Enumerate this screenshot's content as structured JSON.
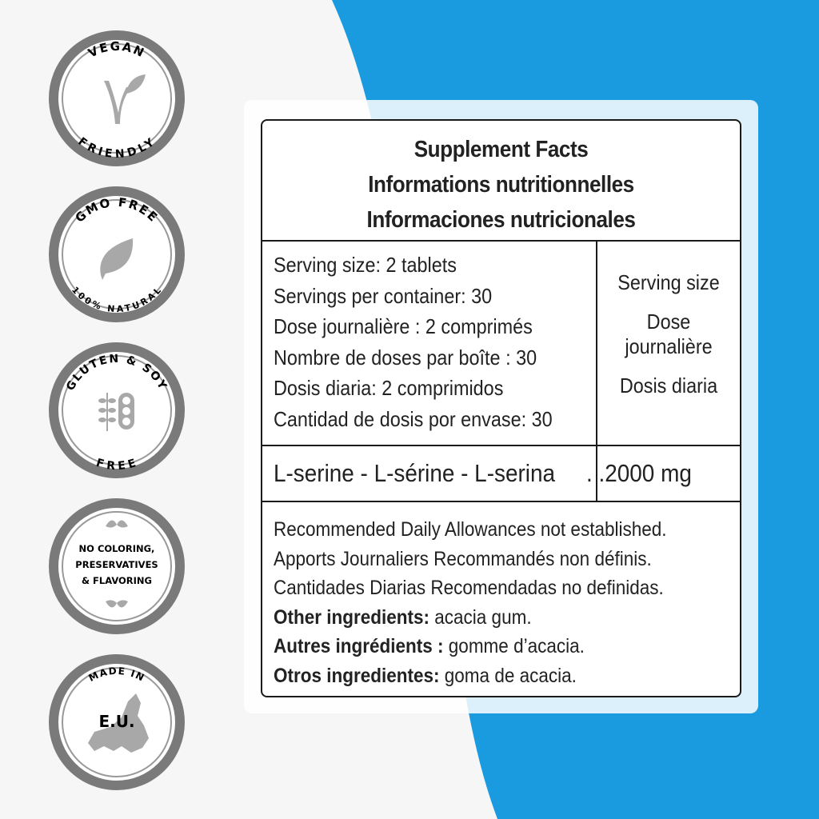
{
  "colors": {
    "background": "#f7f6f7",
    "accent_blue": "#1a9be0",
    "badge_ring": "#7a7a7a",
    "badge_icon": "#a0a0a0"
  },
  "badges": [
    {
      "top": "VEGAN",
      "bottom": "FRIENDLY",
      "icon": "v-leaf-icon"
    },
    {
      "top": "GMO FREE",
      "bottom": "100% NATURAL",
      "icon": "leaf-icon"
    },
    {
      "top": "GLUTEN & SOY",
      "bottom": "FREE",
      "icon": "wheat-soy-icon"
    },
    {
      "lines": [
        "NO COLORING,",
        "PRESERVATIVES",
        "& FLAVORING"
      ],
      "icon": "leaves-icon"
    },
    {
      "top": "MADE IN",
      "center": "E.U.",
      "icon": "europe-map-icon"
    }
  ],
  "facts": {
    "titles": [
      "Supplement Facts",
      "Informations nutritionnelles",
      "Informaciones nutricionales"
    ],
    "serving_lines": [
      "Serving size: 2 tablets",
      "Servings per container: 30",
      "Dose journalière : 2 comprimés",
      "Nombre de doses par boîte : 30",
      "Dosis diaria: 2 comprimidos",
      "Cantidad de dosis por envase: 30"
    ],
    "serving_header": {
      "en": "Serving size",
      "fr_1": "Dose",
      "fr_2": "journalière",
      "es": "Dosis diaria"
    },
    "ingredient": {
      "name": "L-serine - L-sérine - L-serina",
      "amount": ". .2000 mg"
    },
    "footnotes": [
      "Recommended Daily Allowances not established.",
      "Apports Journaliers Recommandés non définis.",
      "Cantidades Diarias Recomendadas no definidas."
    ],
    "other": [
      {
        "label": "Other ingredients:",
        "value": " acacia gum."
      },
      {
        "label": "Autres ingrédients :",
        "value": " gomme d’acacia."
      },
      {
        "label": "Otros ingredientes:",
        "value": " goma de acacia."
      }
    ]
  }
}
